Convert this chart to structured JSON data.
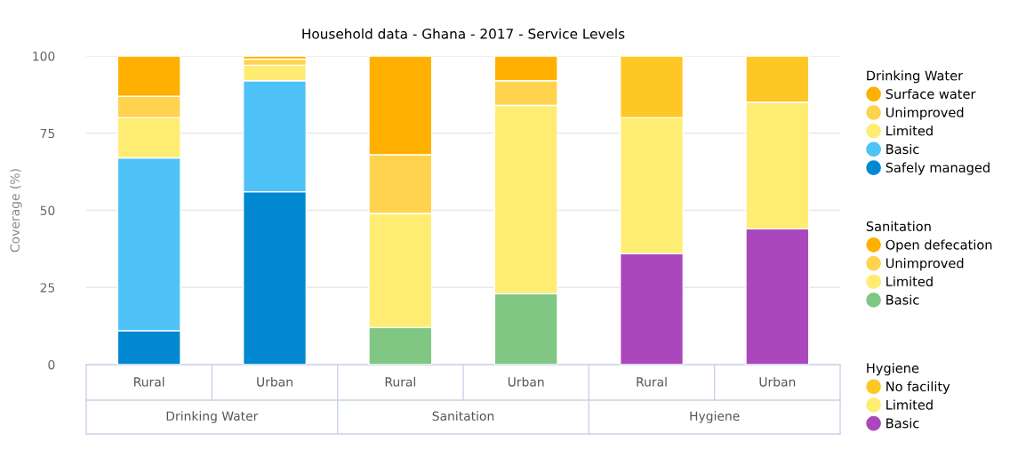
{
  "chart_data": {
    "type": "bar",
    "title": "Household data - Ghana - 2017 - Service Levels",
    "ylabel": "Coverage (%)",
    "categories": [
      "Rural",
      "Urban",
      "Rural",
      "Urban",
      "Rural",
      "Urban"
    ],
    "annotations": [
      "Drinking Water",
      "Sanitation",
      "Hygiene"
    ],
    "stacked": true,
    "ylim": [
      0,
      100
    ],
    "yticks": [
      0,
      25,
      50,
      75,
      100
    ],
    "grid": "y",
    "legend": "right",
    "series": [
      {
        "name": "Safely managed",
        "color": "#0288d1",
        "values": [
          11,
          56,
          null,
          null,
          null,
          null
        ]
      },
      {
        "name": "Basic",
        "color": "#4fc3f7",
        "values": [
          56,
          36,
          null,
          null,
          null,
          null
        ]
      },
      {
        "name": "Limited",
        "color": "#ffec73",
        "values": [
          13,
          5,
          null,
          null,
          null,
          null
        ]
      },
      {
        "name": "Unimproved",
        "color": "#ffd34d",
        "values": [
          7,
          2,
          null,
          null,
          null,
          null
        ]
      },
      {
        "name": "Surface water",
        "color": "#ffb000",
        "values": [
          13,
          1,
          null,
          null,
          null,
          null
        ]
      },
      {
        "name": "Basic",
        "color": "#81c784",
        "values": [
          null,
          null,
          12,
          23,
          null,
          null
        ]
      },
      {
        "name": "Limited",
        "color": "#ffec73",
        "values": [
          null,
          null,
          37,
          61,
          null,
          null
        ]
      },
      {
        "name": "Unimproved",
        "color": "#ffd34d",
        "values": [
          null,
          null,
          19,
          8,
          null,
          null
        ]
      },
      {
        "name": "Open defecation",
        "color": "#ffb000",
        "values": [
          null,
          null,
          32,
          8,
          null,
          null
        ]
      },
      {
        "name": "Basic",
        "color": "#ab47bc",
        "values": [
          null,
          null,
          null,
          null,
          36,
          44
        ]
      },
      {
        "name": "Limited",
        "color": "#ffec73",
        "values": [
          null,
          null,
          null,
          null,
          44,
          41
        ]
      },
      {
        "name": "No facility",
        "color": "#ffc726",
        "values": [
          null,
          null,
          null,
          null,
          20,
          15
        ]
      }
    ]
  }
}
